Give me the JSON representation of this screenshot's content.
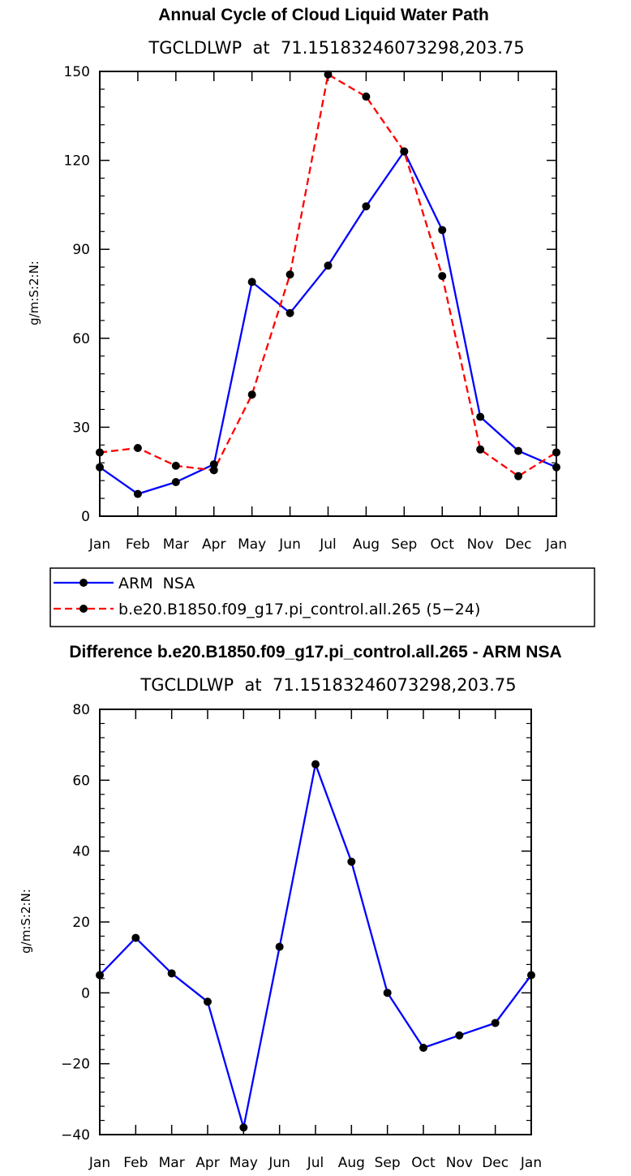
{
  "chart_data": [
    {
      "type": "line",
      "title": "Annual Cycle of Cloud Liquid Water Path",
      "subtitle": "TGCLDLWP  at  71.15183246073298,203.75",
      "ylabel": "g/m:S:2:N:",
      "xlabel": "",
      "categories": [
        "Jan",
        "Feb",
        "Mar",
        "Apr",
        "May",
        "Jun",
        "Jul",
        "Aug",
        "Sep",
        "Oct",
        "Nov",
        "Dec",
        "Jan"
      ],
      "ylim": [
        0,
        150
      ],
      "yticks": [
        "0",
        "30",
        "60",
        "90",
        "120",
        "150"
      ],
      "series": [
        {
          "name": "ARM  NSA",
          "color": "#0000ff",
          "dash": "solid",
          "values": [
            16.5,
            7.5,
            11.5,
            17.5,
            79,
            68.5,
            84.5,
            104.5,
            123,
            96.5,
            33.5,
            22,
            16.5
          ]
        },
        {
          "name": "b.e20.B1850.f09_g17.pi_control.all.265 (5−24)",
          "color": "#ff0000",
          "dash": "dashed",
          "values": [
            21.5,
            23,
            17,
            15.5,
            41,
            81.5,
            149,
            141.5,
            123,
            81,
            22.5,
            13.5,
            21.5
          ]
        }
      ]
    },
    {
      "type": "line",
      "title": "Difference b.e20.B1850.f09_g17.pi_control.all.265 - ARM NSA",
      "subtitle": "TGCLDLWP  at  71.15183246073298,203.75",
      "ylabel": "g/m:S:2:N:",
      "xlabel": "",
      "categories": [
        "Jan",
        "Feb",
        "Mar",
        "Apr",
        "May",
        "Jun",
        "Jul",
        "Aug",
        "Sep",
        "Oct",
        "Nov",
        "Dec",
        "Jan"
      ],
      "ylim": [
        -40,
        80
      ],
      "yticks": [
        "−40",
        "−20",
        "0",
        "20",
        "40",
        "60",
        "80"
      ],
      "series": [
        {
          "name": "Difference",
          "color": "#0000ff",
          "dash": "solid",
          "values": [
            5,
            15.5,
            5.5,
            -2.5,
            -38,
            13,
            64.5,
            37,
            0,
            -15.5,
            -12,
            -8.5,
            5
          ]
        }
      ]
    }
  ]
}
